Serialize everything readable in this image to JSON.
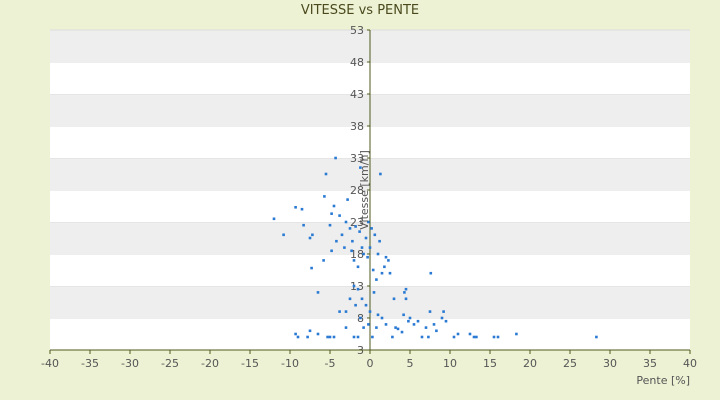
{
  "chart_data": {
    "type": "scatter",
    "title": "VITESSE vs PENTE",
    "xlabel": "Pente [%]",
    "ylabel": "Vitesse [km/h]",
    "xlim": [
      -40,
      40
    ],
    "ylim": [
      3,
      53
    ],
    "xticks": [
      -40,
      -35,
      -30,
      -25,
      -20,
      -15,
      -10,
      -5,
      0,
      5,
      10,
      15,
      20,
      25,
      30,
      35,
      40
    ],
    "yticks": [
      3,
      8,
      13,
      18,
      23,
      28,
      33,
      38,
      43,
      48,
      53
    ],
    "grid": "banded horizontal",
    "legend": "none",
    "colors": {
      "point": "#2a7ad4",
      "band": "#eeeeee",
      "plot_bg": "#ffffff",
      "axis": "#4f5a1d",
      "background": "#eef2d4"
    },
    "series": [
      {
        "points": [
          [
            -12,
            23.5
          ],
          [
            -10.8,
            21
          ],
          [
            -9.3,
            25.3
          ],
          [
            -8.5,
            25
          ],
          [
            -8.3,
            22.5
          ],
          [
            -7.5,
            20.5
          ],
          [
            -7.2,
            21
          ],
          [
            -7.3,
            15.8
          ],
          [
            -6.5,
            12
          ],
          [
            -5.8,
            17
          ],
          [
            -5.5,
            30.5
          ],
          [
            -5.7,
            27
          ],
          [
            -5,
            22.5
          ],
          [
            -4.8,
            24.3
          ],
          [
            -4.5,
            25.5
          ],
          [
            -4.3,
            33
          ],
          [
            -4.8,
            18.5
          ],
          [
            -4.2,
            20
          ],
          [
            -3.8,
            24
          ],
          [
            -3.5,
            21
          ],
          [
            -3.2,
            19
          ],
          [
            -3,
            23
          ],
          [
            -2.8,
            26.5
          ],
          [
            -2.5,
            22
          ],
          [
            -2.3,
            18.5
          ],
          [
            -2,
            17
          ],
          [
            -1.8,
            22.3
          ],
          [
            -2.2,
            20
          ],
          [
            -1.5,
            16
          ],
          [
            -1.3,
            21.5
          ],
          [
            -1.2,
            31.5
          ],
          [
            -1,
            19
          ],
          [
            -0.8,
            18
          ],
          [
            -0.5,
            20.5
          ],
          [
            -0.3,
            17.5
          ],
          [
            -0.2,
            23
          ],
          [
            0,
            19
          ],
          [
            0.2,
            22
          ],
          [
            0.4,
            15.5
          ],
          [
            0.6,
            21
          ],
          [
            0.8,
            14
          ],
          [
            1,
            18
          ],
          [
            1.2,
            20
          ],
          [
            1.3,
            30.5
          ],
          [
            1.5,
            15
          ],
          [
            1.8,
            16
          ],
          [
            2,
            17.5
          ],
          [
            2.3,
            17
          ],
          [
            2.5,
            15
          ],
          [
            3,
            11
          ],
          [
            -2,
            13
          ],
          [
            -1.5,
            12.5
          ],
          [
            -1,
            11
          ],
          [
            -0.5,
            10
          ],
          [
            0,
            9
          ],
          [
            0.5,
            12
          ],
          [
            1,
            8.5
          ],
          [
            1.5,
            8
          ],
          [
            2,
            7
          ],
          [
            0.8,
            6.5
          ],
          [
            -2.5,
            11
          ],
          [
            -3,
            9
          ],
          [
            -1.8,
            10
          ],
          [
            -1.2,
            8
          ],
          [
            -0.8,
            6.5
          ],
          [
            -1.5,
            4.8
          ],
          [
            -2,
            3.8
          ],
          [
            -3,
            6.5
          ],
          [
            -3.8,
            9
          ],
          [
            -4.5,
            4.8
          ],
          [
            -5,
            4
          ],
          [
            -5.3,
            3.5
          ],
          [
            -6.5,
            5.5
          ],
          [
            -7.8,
            4.5
          ],
          [
            -7.5,
            6
          ],
          [
            -9.3,
            5.5
          ],
          [
            -9,
            1.5
          ],
          [
            2.8,
            3.5
          ],
          [
            3.2,
            6.5
          ],
          [
            3.5,
            6.3
          ],
          [
            4,
            5.8
          ],
          [
            4.2,
            8.5
          ],
          [
            4.5,
            12.5
          ],
          [
            4.3,
            12
          ],
          [
            4.5,
            11
          ],
          [
            4.8,
            7.5
          ],
          [
            5,
            8
          ],
          [
            5.5,
            7
          ],
          [
            6,
            7.5
          ],
          [
            6.5,
            5
          ],
          [
            7,
            6.5
          ],
          [
            7.3,
            4.5
          ],
          [
            7.6,
            15
          ],
          [
            7.5,
            9
          ],
          [
            8,
            7
          ],
          [
            8.3,
            6
          ],
          [
            9,
            8
          ],
          [
            9.5,
            7.5
          ],
          [
            9.2,
            9
          ],
          [
            10.5,
            5
          ],
          [
            11,
            5.5
          ],
          [
            12.5,
            5.5
          ],
          [
            13,
            5
          ],
          [
            13.3,
            3.5
          ],
          [
            15.5,
            4.5
          ],
          [
            16,
            5
          ],
          [
            18.3,
            5.5
          ],
          [
            28.3,
            1.5
          ],
          [
            0.3,
            5
          ],
          [
            -0.2,
            7
          ]
        ]
      }
    ]
  }
}
